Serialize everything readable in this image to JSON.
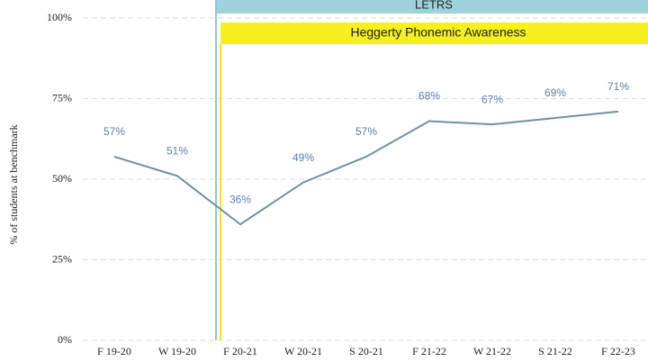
{
  "chart_data": {
    "type": "line",
    "y_label": "% of students at benchmark",
    "categories": [
      "F 19-20",
      "W 19-20",
      "F 20-21",
      "W 20-21",
      "S 20-21",
      "F 21-22",
      "W 21-22",
      "S 21-22",
      "F 22-23"
    ],
    "series": [
      {
        "name": "% of students at benchmark",
        "color": "#6f8fae",
        "values": [
          57,
          51,
          36,
          49,
          57,
          68,
          67,
          69,
          71
        ],
        "value_labels": [
          "57%",
          "51%",
          "36%",
          "49%",
          "57%",
          "68%",
          "67%",
          "69%",
          "71%"
        ]
      }
    ],
    "ylim": [
      0,
      100
    ],
    "yticks": [
      {
        "value": 0,
        "label": "0%"
      },
      {
        "value": 25,
        "label": "25%"
      },
      {
        "value": 50,
        "label": "50%"
      },
      {
        "value": 75,
        "label": "75%"
      },
      {
        "value": 100,
        "label": "100%"
      }
    ],
    "grid": true,
    "annotations": [
      {
        "text": "LETRS"
      },
      {
        "text": "Heggerty Phonemic Awareness"
      }
    ]
  }
}
